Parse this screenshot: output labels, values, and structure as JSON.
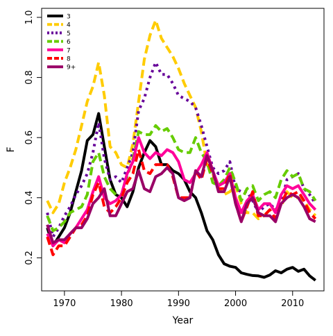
{
  "chart_data": {
    "type": "line",
    "xlabel": "Year",
    "ylabel": "F",
    "xlim": [
      1966,
      2015.5
    ],
    "ylim": [
      0.09,
      1.03
    ],
    "xticks": [
      "1970",
      "1980",
      "1990",
      "2000",
      "2010"
    ],
    "yticks": [
      "0.2",
      "0.4",
      "0.6",
      "0.8",
      "1.0"
    ],
    "grid": false,
    "legend_position": "top-left",
    "x": [
      1967,
      1968,
      1969,
      1970,
      1971,
      1972,
      1973,
      1974,
      1975,
      1976,
      1977,
      1978,
      1979,
      1980,
      1981,
      1982,
      1983,
      1984,
      1985,
      1986,
      1987,
      1988,
      1989,
      1990,
      1991,
      1992,
      1993,
      1994,
      1995,
      1996,
      1997,
      1998,
      1999,
      2000,
      2001,
      2002,
      2003,
      2004,
      2005,
      2006,
      2007,
      2008,
      2009,
      2010,
      2011,
      2012,
      2013,
      2014
    ],
    "series": [
      {
        "name": "3",
        "color": "#000000",
        "dash": "solid",
        "values": [
          0.3,
          0.24,
          0.27,
          0.3,
          0.35,
          0.42,
          0.49,
          0.59,
          0.61,
          0.68,
          0.57,
          0.46,
          0.41,
          0.4,
          0.37,
          0.42,
          0.5,
          0.55,
          0.59,
          0.57,
          0.51,
          0.51,
          0.49,
          0.48,
          0.46,
          0.42,
          0.4,
          0.35,
          0.29,
          0.26,
          0.21,
          0.18,
          0.172,
          0.168,
          0.15,
          0.145,
          0.141,
          0.14,
          0.135,
          0.143,
          0.157,
          0.15,
          0.162,
          0.168,
          0.155,
          0.162,
          0.14,
          0.125
        ]
      },
      {
        "name": "4",
        "color": "#FFCC00",
        "dash": "dashed",
        "values": [
          0.39,
          0.35,
          0.38,
          0.45,
          0.5,
          0.56,
          0.64,
          0.72,
          0.77,
          0.85,
          0.74,
          0.57,
          0.55,
          0.51,
          0.5,
          0.58,
          0.72,
          0.86,
          0.94,
          0.99,
          0.93,
          0.9,
          0.87,
          0.83,
          0.78,
          0.74,
          0.7,
          0.62,
          0.51,
          0.48,
          0.43,
          0.41,
          0.42,
          0.44,
          0.38,
          0.35,
          0.35,
          0.33,
          0.34,
          0.36,
          0.36,
          0.37,
          0.42,
          0.4,
          0.4,
          0.39,
          0.36,
          0.34
        ]
      },
      {
        "name": "5",
        "color": "#660099",
        "dash": "dotted",
        "values": [
          0.35,
          0.27,
          0.3,
          0.34,
          0.37,
          0.41,
          0.44,
          0.48,
          0.55,
          0.65,
          0.53,
          0.46,
          0.47,
          0.45,
          0.5,
          0.55,
          0.69,
          0.73,
          0.8,
          0.85,
          0.81,
          0.81,
          0.78,
          0.74,
          0.73,
          0.72,
          0.7,
          0.64,
          0.57,
          0.5,
          0.48,
          0.49,
          0.52,
          0.43,
          0.42,
          0.42,
          0.39,
          0.35,
          0.37,
          0.38,
          0.36,
          0.38,
          0.46,
          0.47,
          0.48,
          0.43,
          0.41,
          0.38
        ]
      },
      {
        "name": "6",
        "color": "#66CC00",
        "dash": "dashed",
        "values": [
          0.34,
          0.29,
          0.3,
          0.32,
          0.35,
          0.36,
          0.37,
          0.41,
          0.52,
          0.55,
          0.47,
          0.43,
          0.41,
          0.41,
          0.47,
          0.53,
          0.62,
          0.61,
          0.61,
          0.64,
          0.62,
          0.63,
          0.6,
          0.56,
          0.55,
          0.55,
          0.6,
          0.55,
          0.52,
          0.45,
          0.44,
          0.46,
          0.5,
          0.45,
          0.39,
          0.43,
          0.44,
          0.39,
          0.41,
          0.42,
          0.4,
          0.46,
          0.49,
          0.47,
          0.48,
          0.43,
          0.42,
          0.39
        ]
      },
      {
        "name": "7",
        "color": "#FF0099",
        "dash": "solid",
        "values": [
          0.28,
          0.24,
          0.26,
          0.25,
          0.28,
          0.3,
          0.33,
          0.36,
          0.42,
          0.47,
          0.4,
          0.38,
          0.39,
          0.41,
          0.48,
          0.52,
          0.6,
          0.55,
          0.53,
          0.55,
          0.54,
          0.56,
          0.55,
          0.52,
          0.46,
          0.45,
          0.48,
          0.51,
          0.55,
          0.49,
          0.44,
          0.45,
          0.48,
          0.4,
          0.35,
          0.39,
          0.41,
          0.36,
          0.38,
          0.38,
          0.35,
          0.41,
          0.44,
          0.43,
          0.44,
          0.41,
          0.38,
          0.36
        ]
      },
      {
        "name": "8",
        "color": "#FF0000",
        "dash": "dashed",
        "values": [
          0.27,
          0.21,
          0.24,
          0.24,
          0.27,
          0.3,
          0.31,
          0.34,
          0.41,
          0.45,
          0.37,
          0.35,
          0.37,
          0.4,
          0.45,
          0.48,
          0.56,
          0.49,
          0.48,
          0.51,
          0.51,
          0.51,
          0.47,
          0.4,
          0.4,
          0.4,
          0.49,
          0.46,
          0.53,
          0.48,
          0.43,
          0.43,
          0.48,
          0.38,
          0.32,
          0.37,
          0.42,
          0.34,
          0.34,
          0.36,
          0.33,
          0.38,
          0.42,
          0.41,
          0.42,
          0.39,
          0.35,
          0.33
        ]
      },
      {
        "name": "9+",
        "color": "#990066",
        "dash": "solid",
        "values": [
          0.31,
          0.25,
          0.26,
          0.26,
          0.28,
          0.3,
          0.3,
          0.33,
          0.38,
          0.4,
          0.43,
          0.34,
          0.34,
          0.38,
          0.42,
          0.43,
          0.49,
          0.43,
          0.42,
          0.47,
          0.48,
          0.5,
          0.48,
          0.4,
          0.39,
          0.4,
          0.49,
          0.47,
          0.54,
          0.49,
          0.42,
          0.42,
          0.47,
          0.38,
          0.32,
          0.38,
          0.4,
          0.35,
          0.34,
          0.34,
          0.32,
          0.38,
          0.4,
          0.41,
          0.4,
          0.37,
          0.33,
          0.32
        ]
      }
    ]
  }
}
